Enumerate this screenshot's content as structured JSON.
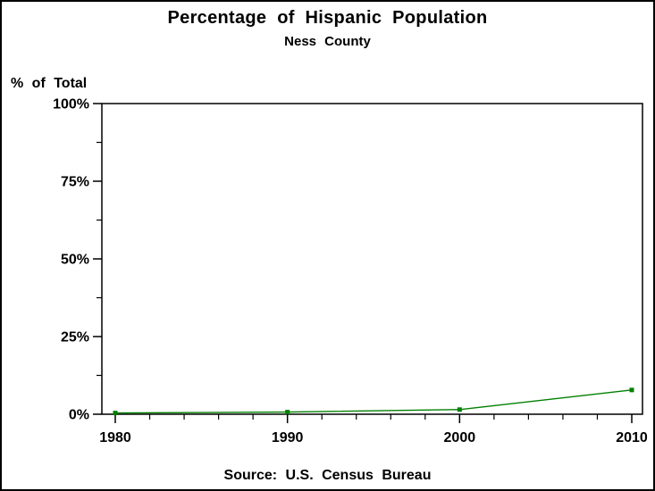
{
  "page": {
    "background": "#ffffff",
    "frame_border_color": "#000000",
    "axis_color": "#000000"
  },
  "chart_data": {
    "type": "line",
    "title": "Percentage of Hispanic Population",
    "subtitle": "Ness County",
    "ylabel": "% of Total",
    "xlabel": "",
    "source": "Source: U.S. Census Bureau",
    "x": [
      1980,
      1990,
      2000,
      2010
    ],
    "series": [
      {
        "name": "hispanic-percent-of-total",
        "color": "#008000",
        "marker": "square",
        "values": [
          0.4,
          0.7,
          1.5,
          7.8
        ]
      }
    ],
    "xlim": [
      1980,
      2010
    ],
    "ylim": [
      0,
      100
    ],
    "x_major_ticks": [
      1980,
      1990,
      2000,
      2010
    ],
    "x_minor_step": 2,
    "y_major_ticks": [
      0,
      25,
      50,
      75,
      100
    ],
    "y_minor_ticks": [
      12.5,
      37.5,
      62.5,
      87.5
    ],
    "y_tick_suffix": "%",
    "grid": false,
    "legend_position": "none"
  }
}
